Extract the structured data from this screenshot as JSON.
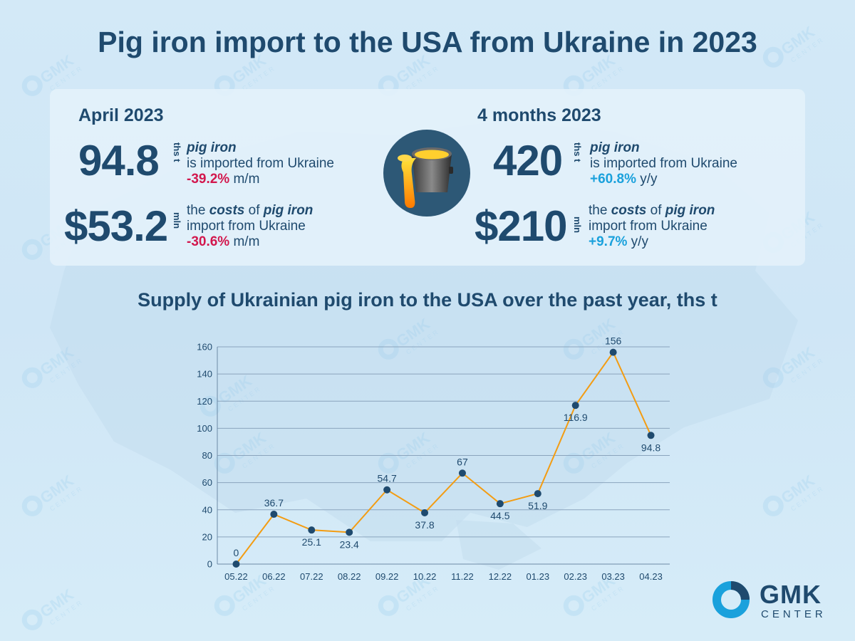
{
  "title": "Pig iron import to the USA from Ukraine in 2023",
  "left_panel": {
    "period": "April 2023",
    "volume": {
      "value": "94.8",
      "unit": "ths t",
      "line1": "pig iron",
      "line2": "is imported from Ukraine",
      "change": "-39.2%",
      "change_suffix": " m/m"
    },
    "cost": {
      "value": "$53.2",
      "unit": "mln",
      "line1_prefix": "the ",
      "line1_em1": "costs",
      "line1_mid": " of ",
      "line1_em2": "pig iron",
      "line2": "import from Ukraine",
      "change": "-30.6%",
      "change_suffix": " m/m"
    }
  },
  "right_panel": {
    "period": "4 months 2023",
    "volume": {
      "value": "420",
      "unit": "ths t",
      "line1": "pig iron",
      "line2": "is imported from Ukraine",
      "change": "+60.8%",
      "change_suffix": " y/y"
    },
    "cost": {
      "value": "$210",
      "unit": "mln",
      "line1_prefix": "the ",
      "line1_em1": "costs",
      "line1_mid": " of ",
      "line1_em2": "pig iron",
      "line2": "import from Ukraine",
      "change": "+9.7%",
      "change_suffix": " y/y"
    }
  },
  "icon": "molten-metal-ladle-icon",
  "colors": {
    "title": "#1f4a6e",
    "negative": "#d2174d",
    "positive": "#1aa1dc",
    "line": "#f39c12",
    "marker": "#1f4a6e",
    "grid": "#8aa4bd"
  },
  "chart_title": "Supply of Ukrainian pig iron to the USA over the past year, ths t",
  "chart_data": {
    "type": "line",
    "title": "Supply of Ukrainian pig iron to the USA over the past year, ths t",
    "categories": [
      "05.22",
      "06.22",
      "07.22",
      "08.22",
      "09.22",
      "10.22",
      "11.22",
      "12.22",
      "01.23",
      "02.23",
      "03.23",
      "04.23"
    ],
    "values": [
      0,
      36.7,
      25.1,
      23.4,
      54.7,
      37.8,
      67,
      44.5,
      51.9,
      116.9,
      156,
      94.8
    ],
    "labels": [
      "0",
      "36.7",
      "25.1",
      "23.4",
      "54.7",
      "37.8",
      "67",
      "44.5",
      "51.9",
      "116.9",
      "156",
      "94.8"
    ],
    "ylim": [
      0,
      160
    ],
    "yticks": [
      0,
      20,
      40,
      60,
      80,
      100,
      120,
      140,
      160
    ],
    "grid": true,
    "legend": "none"
  },
  "logo": {
    "name": "GMK",
    "sub": "CENTER"
  },
  "watermark": {
    "name": "GMK",
    "sub": "CENTER"
  }
}
